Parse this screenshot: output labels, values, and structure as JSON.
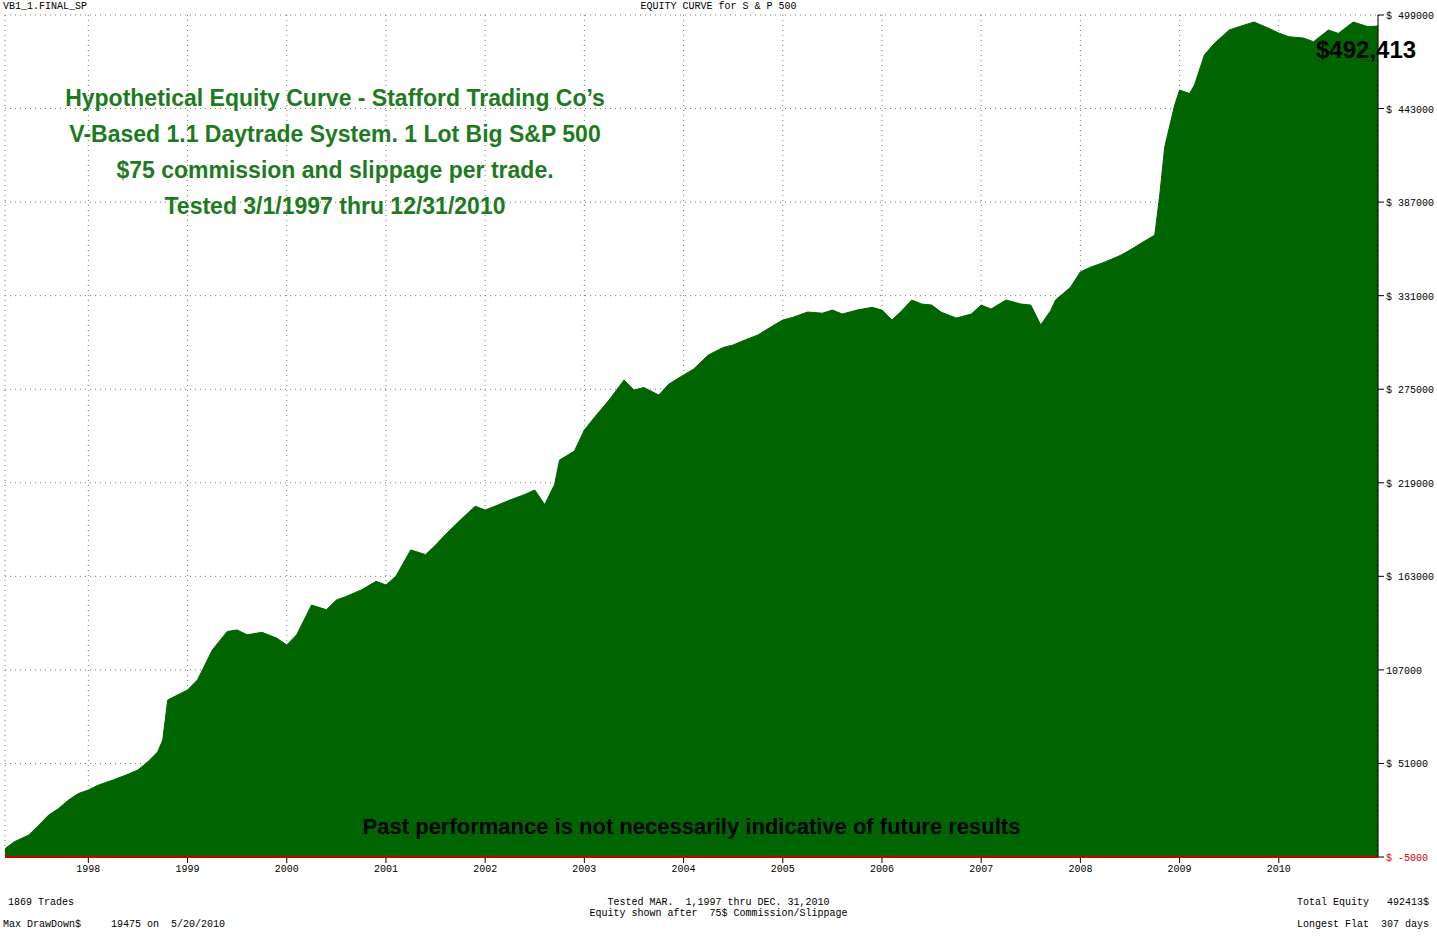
{
  "chart_data": {
    "type": "area",
    "title": "EQUITY CURVE for S & P 500",
    "header_left": "VB1_1.FINAL_SP",
    "annotations": [
      "Hypothetical Equity Curve - Stafford Trading Co’s",
      "V-Based 1.1 Daytrade System. 1 Lot Big S&P 500",
      "$75 commission and slippage per trade.",
      "Tested 3/1/1997 thru 12/31/2010"
    ],
    "end_value_label": "$492,413",
    "disclaimer": "Past performance is not necessarily indicative of future results",
    "footer": {
      "trades": "1869 Trades",
      "tested": "Tested MAR.  1,1997 thru DEC. 31,2010",
      "equity_note": "Equity shown after  75$ Commission/Slippage",
      "total_equity": "Total Equity   492413$",
      "max_drawdown": "Max DrawDown$     19475 on  5/20/2010",
      "longest_flat": "Longest Flat  307 days"
    },
    "x": [
      1997.16,
      1997.25,
      1997.4,
      1997.5,
      1997.6,
      1997.7,
      1997.8,
      1997.9,
      1998.0,
      1998.1,
      1998.25,
      1998.4,
      1998.5,
      1998.6,
      1998.7,
      1998.75,
      1998.8,
      1998.9,
      1999.0,
      1999.1,
      1999.25,
      1999.4,
      1999.5,
      1999.6,
      1999.75,
      1999.9,
      2000.0,
      2000.1,
      2000.25,
      2000.4,
      2000.5,
      2000.6,
      2000.75,
      2000.9,
      2001.0,
      2001.1,
      2001.25,
      2001.4,
      2001.5,
      2001.6,
      2001.75,
      2001.9,
      2002.0,
      2002.1,
      2002.25,
      2002.4,
      2002.5,
      2002.6,
      2002.7,
      2002.75,
      2002.9,
      2003.0,
      2003.1,
      2003.25,
      2003.4,
      2003.5,
      2003.6,
      2003.75,
      2003.85,
      2004.0,
      2004.1,
      2004.25,
      2004.4,
      2004.5,
      2004.6,
      2004.75,
      2004.9,
      2005.0,
      2005.1,
      2005.25,
      2005.4,
      2005.5,
      2005.6,
      2005.75,
      2005.9,
      2006.0,
      2006.1,
      2006.2,
      2006.3,
      2006.4,
      2006.5,
      2006.6,
      2006.75,
      2006.9,
      2007.0,
      2007.1,
      2007.25,
      2007.4,
      2007.5,
      2007.6,
      2007.7,
      2007.75,
      2007.9,
      2008.0,
      2008.1,
      2008.25,
      2008.4,
      2008.5,
      2008.6,
      2008.75,
      2008.8,
      2008.85,
      2008.95,
      2009.0,
      2009.1,
      2009.15,
      2009.25,
      2009.35,
      2009.5,
      2009.6,
      2009.75,
      2009.9,
      2010.0,
      2010.1,
      2010.25,
      2010.35,
      2010.5,
      2010.6,
      2010.75,
      2010.9,
      2011.0
    ],
    "values": [
      0,
      4000,
      8200,
      14000,
      20100,
      24000,
      29100,
      33000,
      35100,
      38000,
      41100,
      44500,
      47100,
      52000,
      58000,
      65000,
      89000,
      92000,
      95000,
      101000,
      118900,
      130000,
      130900,
      128000,
      129500,
      126000,
      121900,
      128000,
      145800,
      143000,
      148800,
      151000,
      154800,
      160000,
      157800,
      163000,
      178800,
      176000,
      181700,
      188000,
      196700,
      205000,
      202700,
      205000,
      208700,
      212000,
      214700,
      206000,
      218000,
      232600,
      238000,
      250600,
      258000,
      268600,
      280500,
      274500,
      276000,
      271500,
      278000,
      283500,
      287000,
      295500,
      300000,
      301500,
      304000,
      307500,
      313000,
      316400,
      318000,
      321200,
      320500,
      322400,
      320000,
      322400,
      324000,
      322400,
      316400,
      322000,
      328400,
      326000,
      325400,
      321000,
      317600,
      320000,
      325400,
      323000,
      328400,
      326000,
      325400,
      313500,
      322000,
      328400,
      336000,
      345200,
      348000,
      351200,
      355000,
      358300,
      362000,
      367300,
      391300,
      420000,
      445000,
      454100,
      452000,
      457100,
      475100,
      482000,
      490000,
      492000,
      494800,
      491000,
      488200,
      486000,
      485200,
      483000,
      490000,
      488000,
      494800,
      492000,
      492413
    ],
    "color": "#006400",
    "xlim": [
      1997.16,
      2011.0
    ],
    "xticks": [
      1998,
      1999,
      2000,
      2001,
      2002,
      2003,
      2004,
      2005,
      2006,
      2007,
      2008,
      2009,
      2010
    ],
    "ylim": [
      -5000,
      499000
    ],
    "yticks": [
      {
        "value": -5000,
        "label": "$ -5000"
      },
      {
        "value": 51000,
        "label": "$ 51000"
      },
      {
        "value": 107000,
        "label": "107000"
      },
      {
        "value": 163000,
        "label": "$ 163000"
      },
      {
        "value": 219000,
        "label": "$ 219000"
      },
      {
        "value": 275000,
        "label": "$ 275000"
      },
      {
        "value": 331000,
        "label": "$ 331000"
      },
      {
        "value": 387000,
        "label": "$ 387000"
      },
      {
        "value": 443000,
        "label": "$ 443000"
      },
      {
        "value": 499000,
        "label": "$ 499000"
      }
    ],
    "grid": true
  }
}
